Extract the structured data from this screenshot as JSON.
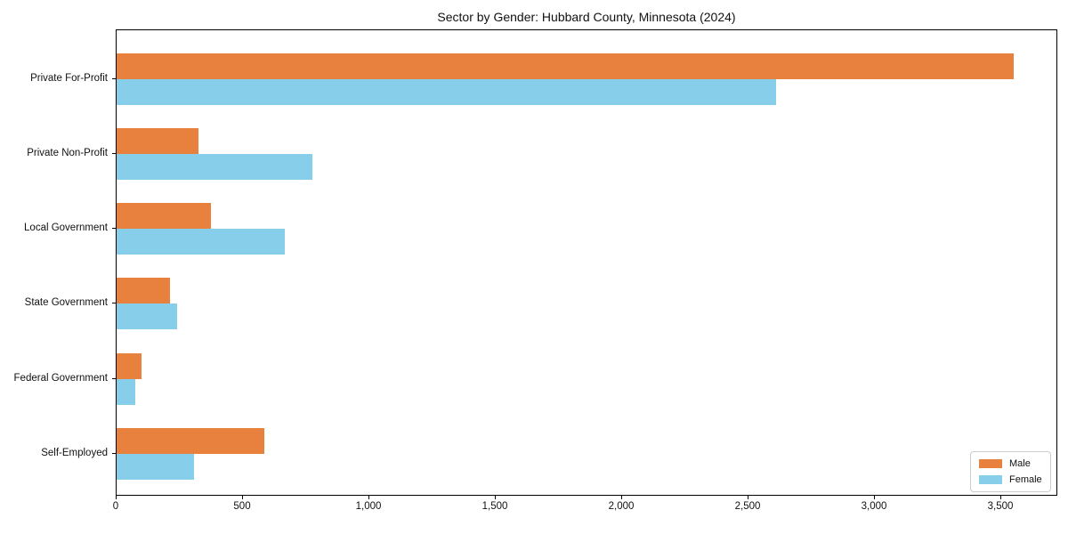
{
  "chart_data": {
    "type": "bar",
    "orientation": "horizontal",
    "title": "Sector by Gender: Hubbard County, Minnesota (2024)",
    "xlabel": "",
    "ylabel": "",
    "categories": [
      "Private For-Profit",
      "Private Non-Profit",
      "Local Government",
      "State Government",
      "Federal Government",
      "Self-Employed"
    ],
    "series": [
      {
        "name": "Male",
        "color": "#e8813d",
        "values": [
          3550,
          325,
          375,
          210,
          100,
          585
        ]
      },
      {
        "name": "Female",
        "color": "#87ceeb",
        "values": [
          2610,
          775,
          665,
          240,
          75,
          305
        ]
      }
    ],
    "xlim": [
      0,
      3727
    ],
    "xticks": [
      0,
      500,
      1000,
      1500,
      2000,
      2500,
      3000,
      3500
    ],
    "xtick_labels": [
      "0",
      "500",
      "1,000",
      "1,500",
      "2,000",
      "2,500",
      "3,000",
      "3,500"
    ],
    "grid": false,
    "legend": {
      "position": "lower right",
      "entries": [
        "Male",
        "Female"
      ]
    },
    "colors": {
      "male": "#e8813d",
      "female": "#87ceeb",
      "spine": "#000000",
      "text": "#111111",
      "legend_border": "#cccccc",
      "background": "#ffffff"
    }
  }
}
